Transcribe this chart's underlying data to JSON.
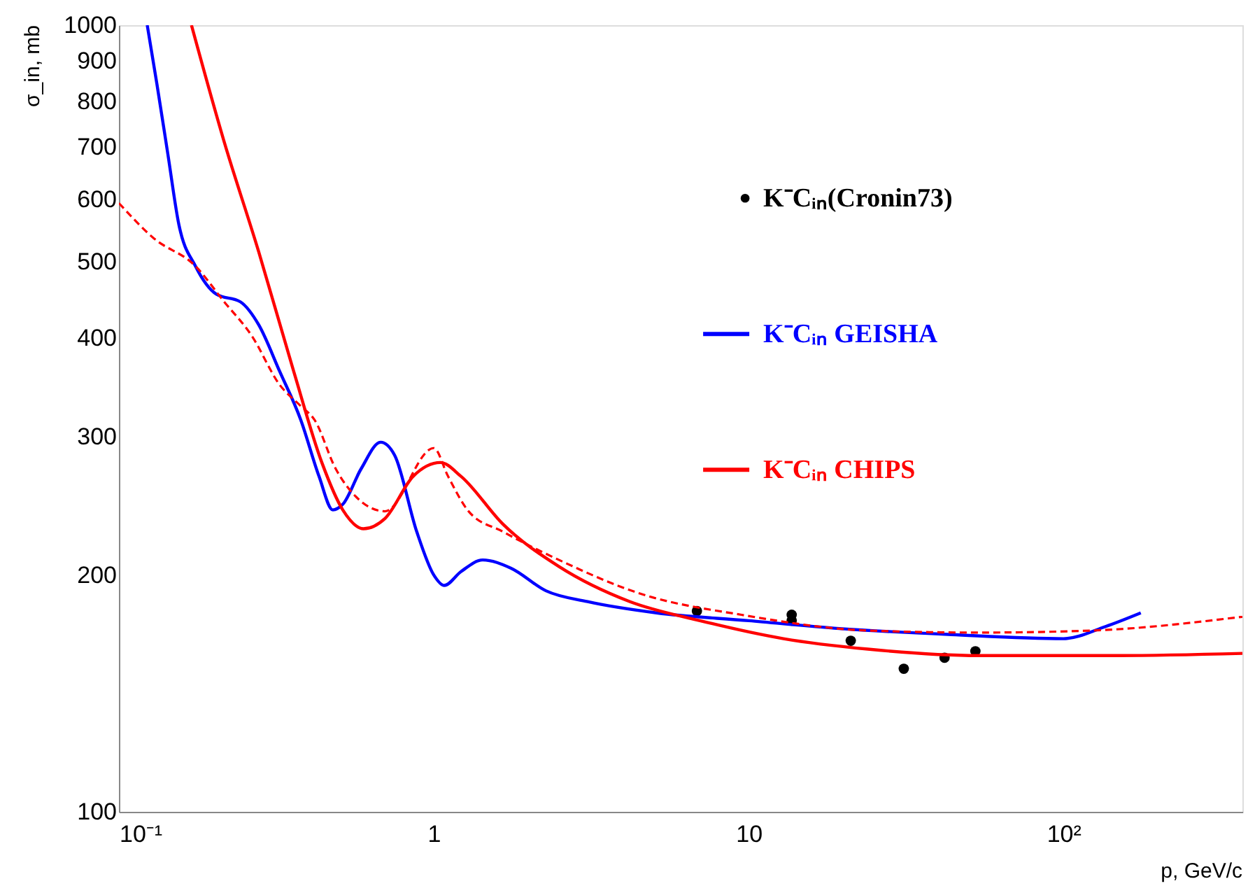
{
  "chart_data": {
    "type": "line",
    "xlabel": "p, GeV/c",
    "ylabel": "σ_in, mb",
    "log": "xy",
    "grid": false,
    "legend": "top right",
    "xlim": [
      0.1,
      370
    ],
    "xticks": [
      {
        "value": 0.1,
        "label": "10⁻¹"
      },
      1,
      10,
      {
        "value": 100,
        "label": "10²"
      }
    ],
    "ylim": [
      100,
      1000
    ],
    "yticks": [
      100,
      200,
      300,
      400,
      500,
      600,
      700,
      800,
      900,
      1000
    ],
    "series": [
      {
        "name": "K⁻Cᵢₙ(Cronin73)",
        "type": "scatter",
        "marker": "circle",
        "color": "#000000",
        "x": [
          6.85,
          13.7,
          13.7,
          21.1,
          31.1,
          41.9,
          52.5
        ],
        "values": [
          180,
          178,
          175,
          165,
          152,
          157,
          160
        ]
      },
      {
        "name": "K⁻Cᵢₙ GEISHA",
        "line_style": "solid",
        "color": "#0000ff",
        "x": [
          0.123,
          0.132,
          0.143,
          0.155,
          0.175,
          0.204,
          0.243,
          0.278,
          0.324,
          0.378,
          0.432,
          0.478,
          0.514,
          0.588,
          0.678,
          0.751,
          0.883,
          1.0,
          1.08,
          1.22,
          1.43,
          1.76,
          2.27,
          3.08,
          5.1,
          10,
          19.4,
          44,
          100,
          136,
          176
        ],
        "values": [
          1000,
          842,
          686,
          558,
          494,
          455,
          445,
          416,
          363,
          315,
          267,
          242,
          246,
          273,
          295,
          284,
          227,
          200,
          194,
          202,
          209,
          204,
          191,
          185,
          179,
          175,
          171,
          168,
          166,
          172,
          179
        ]
      },
      {
        "name": "K⁻Cᵢₙ CHIPS",
        "line_style": "solid",
        "color": "#ff0000",
        "x": [
          0.17,
          0.215,
          0.278,
          0.359,
          0.441,
          0.514,
          0.598,
          0.7,
          0.86,
          1.05,
          1.22,
          1.66,
          2.5,
          4.2,
          7.0,
          12.9,
          23.9,
          54,
          150,
          370
        ],
        "values": [
          1000,
          715,
          515,
          363,
          278,
          242,
          229,
          236,
          267,
          278,
          267,
          232,
          205,
          185,
          175,
          166,
          161,
          158,
          158,
          159
        ]
      },
      {
        "line_style": "dashed",
        "color": "#ff0000",
        "x": [
          0.1,
          0.129,
          0.175,
          0.215,
          0.264,
          0.324,
          0.378,
          0.418,
          0.488,
          0.569,
          0.7,
          1.0,
          1.11,
          1.29,
          1.66,
          2.5,
          4.6,
          9.5,
          23.9,
          54,
          123,
          370
        ],
        "values": [
          594,
          536,
          494,
          446,
          403,
          349,
          328,
          315,
          273,
          251,
          241,
          290,
          267,
          241,
          227,
          209,
          189,
          178,
          170,
          169,
          170,
          177
        ]
      }
    ]
  }
}
